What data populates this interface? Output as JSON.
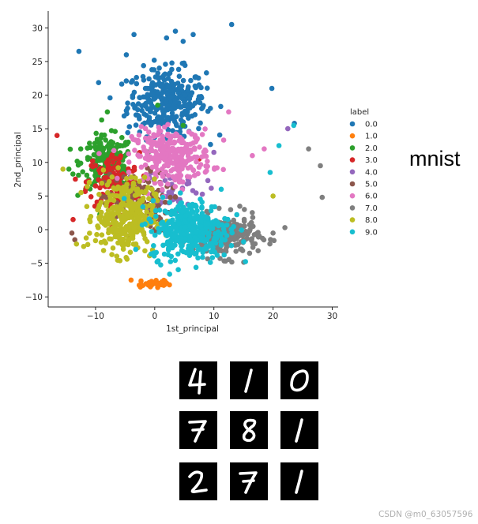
{
  "chart_data": {
    "type": "scatter",
    "title": "",
    "xlabel": "1st_principal",
    "ylabel": "2nd_principal",
    "xlim": [
      -18,
      31
    ],
    "ylim": [
      -11.5,
      32.5
    ],
    "xticks": [
      -10,
      0,
      10,
      20,
      30
    ],
    "yticks": [
      -10,
      -5,
      0,
      5,
      10,
      15,
      20,
      25,
      30
    ],
    "xtick_labels": [
      "−10",
      "0",
      "10",
      "20",
      "30"
    ],
    "ytick_labels": [
      "−10",
      "−5",
      "0",
      "5",
      "10",
      "15",
      "20",
      "25",
      "30"
    ],
    "grid": false,
    "legend": {
      "title": "label",
      "placement": "right",
      "entries": [
        "0.0",
        "1.0",
        "2.0",
        "3.0",
        "4.0",
        "5.0",
        "6.0",
        "7.0",
        "8.0",
        "9.0"
      ]
    },
    "series": [
      {
        "name": "0.0",
        "color": "#1f77b4",
        "center": [
          2,
          19
        ],
        "spread": [
          6,
          4.5
        ],
        "count": 330,
        "x": [
          -12.8,
          13.0,
          19.8,
          23.6,
          3.5,
          6.5,
          -4.8,
          -3.5,
          2.0,
          4.8
        ],
        "y": [
          26.5,
          30.5,
          21.0,
          15.8,
          29.5,
          29.0,
          26.0,
          29.0,
          28.5,
          28.0
        ]
      },
      {
        "name": "1.0",
        "color": "#ff7f0e",
        "center": [
          0,
          -8
        ],
        "spread": [
          3,
          0.8
        ],
        "count": 25,
        "x": [
          -4.0,
          -2.0,
          0.5,
          2.5
        ],
        "y": [
          -7.5,
          -8.3,
          -8.6,
          -8.2
        ]
      },
      {
        "name": "2.0",
        "color": "#2ca02c",
        "center": [
          -8,
          10
        ],
        "spread": [
          4,
          3.5
        ],
        "count": 200,
        "x": [
          -14.5,
          -12.5,
          -8.0,
          0.5,
          4.8
        ],
        "y": [
          9.0,
          12.0,
          17.5,
          18.5,
          15.5
        ]
      },
      {
        "name": "3.0",
        "color": "#d62728",
        "center": [
          -7,
          7
        ],
        "spread": [
          4,
          4
        ],
        "count": 140,
        "x": [
          -16.5,
          -13.8,
          -10.0,
          7.5
        ],
        "y": [
          14.0,
          1.5,
          6.5,
          10.5
        ]
      },
      {
        "name": "4.0",
        "color": "#9467bd",
        "center": [
          3,
          6
        ],
        "spread": [
          5,
          3
        ],
        "count": 50,
        "x": [
          22.5,
          10.0
        ],
        "y": [
          15.0,
          11.5
        ]
      },
      {
        "name": "5.0",
        "color": "#8c564b",
        "center": [
          -3,
          4
        ],
        "spread": [
          5,
          4
        ],
        "count": 110,
        "x": [
          -14.0,
          -13.5,
          6.0
        ],
        "y": [
          -0.5,
          -1.5,
          3.5
        ]
      },
      {
        "name": "6.0",
        "color": "#e377c2",
        "center": [
          3,
          11
        ],
        "spread": [
          6,
          3.5
        ],
        "count": 280,
        "x": [
          18.5,
          16.5,
          -1.0,
          12.5
        ],
        "y": [
          12.0,
          11.0,
          14.5,
          17.5
        ]
      },
      {
        "name": "7.0",
        "color": "#7f7f7f",
        "center": [
          12,
          -1
        ],
        "spread": [
          5,
          2.8
        ],
        "count": 230,
        "x": [
          26.0,
          28.0,
          28.3,
          20.0,
          22.0
        ],
        "y": [
          12.0,
          9.5,
          4.8,
          -0.5,
          0.3
        ]
      },
      {
        "name": "8.0",
        "color": "#bcbd22",
        "center": [
          -5,
          2
        ],
        "spread": [
          4.5,
          5
        ],
        "count": 340,
        "x": [
          -15.5,
          20.0,
          -12.0
        ],
        "y": [
          9.0,
          5.0,
          -2.5
        ]
      },
      {
        "name": "9.0",
        "color": "#17becf",
        "center": [
          6,
          0
        ],
        "spread": [
          6,
          4
        ],
        "count": 360,
        "x": [
          21.0,
          23.5,
          19.5
        ],
        "y": [
          12.5,
          15.5,
          8.5
        ]
      }
    ]
  },
  "side_title": "mnist",
  "digits": [
    {
      "glyph": "4"
    },
    {
      "glyph": "1"
    },
    {
      "glyph": "0"
    },
    {
      "glyph": "7"
    },
    {
      "glyph": "8"
    },
    {
      "glyph": "1"
    },
    {
      "glyph": "2"
    },
    {
      "glyph": "7"
    },
    {
      "glyph": "1"
    }
  ],
  "watermark": "CSDN @m0_63057596"
}
